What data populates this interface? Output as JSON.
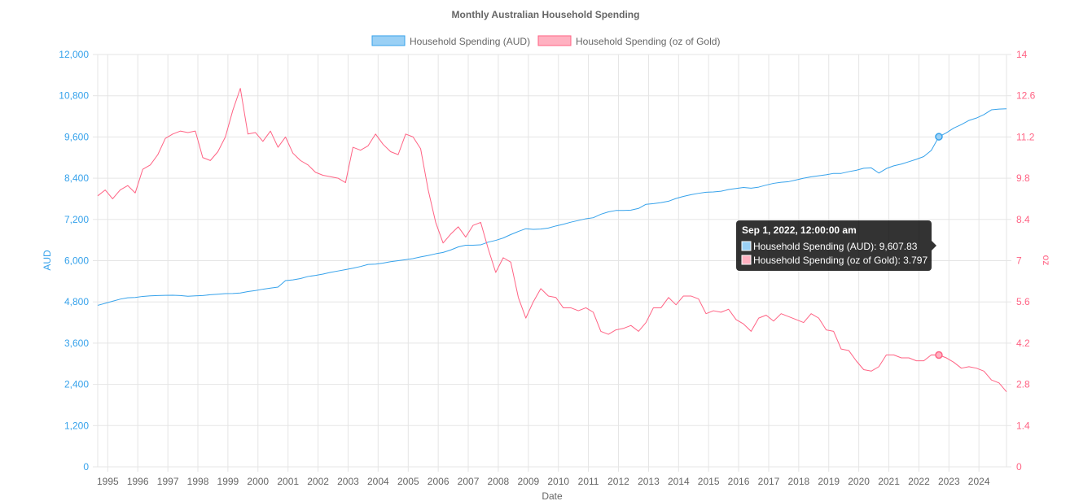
{
  "chart_data": {
    "type": "line",
    "title": "Monthly Australian Household Spending",
    "xlabel": "Date",
    "x_ticks": [
      "1995",
      "1996",
      "1997",
      "1998",
      "1999",
      "2000",
      "2001",
      "2002",
      "2003",
      "2004",
      "2005",
      "2006",
      "2007",
      "2008",
      "2009",
      "2010",
      "2011",
      "2012",
      "2013",
      "2014",
      "2015",
      "2016",
      "2017",
      "2018",
      "2019",
      "2020",
      "2021",
      "2022",
      "2023",
      "2024"
    ],
    "x_range": [
      "1994-09-01",
      "2024-12-01"
    ],
    "legend_position": "top",
    "grid": true,
    "y_left": {
      "label": "AUD",
      "ylim": [
        0,
        12000
      ],
      "ticks": [
        "0",
        "1,200",
        "2,400",
        "3,600",
        "4,800",
        "6,000",
        "7,200",
        "8,400",
        "9,600",
        "10,800",
        "12,000"
      ]
    },
    "y_right": {
      "label": "oz",
      "ylim": [
        0,
        14
      ],
      "ticks": [
        "0",
        "1.4",
        "2.8",
        "4.2",
        "5.6",
        "7",
        "8.4",
        "9.8",
        "11.2",
        "12.6",
        "14"
      ]
    },
    "series": [
      {
        "name": "Household Spending (AUD)",
        "axis": "left",
        "color": "#36a2eb",
        "fill": "#9ad0f5",
        "points": [
          [
            "1994-09-01",
            4700
          ],
          [
            "1994-12-01",
            4760
          ],
          [
            "1995-03-01",
            4820
          ],
          [
            "1995-06-01",
            4880
          ],
          [
            "1995-09-01",
            4920
          ],
          [
            "1995-12-01",
            4930
          ],
          [
            "1996-03-01",
            4960
          ],
          [
            "1996-06-01",
            4975
          ],
          [
            "1996-09-01",
            4985
          ],
          [
            "1996-12-01",
            4990
          ],
          [
            "1997-03-01",
            4995
          ],
          [
            "1997-06-01",
            4985
          ],
          [
            "1997-09-01",
            4965
          ],
          [
            "1997-12-01",
            4975
          ],
          [
            "1998-03-01",
            4985
          ],
          [
            "1998-06-01",
            5010
          ],
          [
            "1998-09-01",
            5025
          ],
          [
            "1998-12-01",
            5040
          ],
          [
            "1999-03-01",
            5045
          ],
          [
            "1999-06-01",
            5060
          ],
          [
            "1999-09-01",
            5100
          ],
          [
            "1999-12-01",
            5130
          ],
          [
            "2000-03-01",
            5170
          ],
          [
            "2000-06-01",
            5200
          ],
          [
            "2000-09-01",
            5230
          ],
          [
            "2000-12-01",
            5420
          ],
          [
            "2001-03-01",
            5440
          ],
          [
            "2001-06-01",
            5480
          ],
          [
            "2001-09-01",
            5540
          ],
          [
            "2001-12-01",
            5570
          ],
          [
            "2002-03-01",
            5610
          ],
          [
            "2002-06-01",
            5660
          ],
          [
            "2002-09-01",
            5700
          ],
          [
            "2002-12-01",
            5740
          ],
          [
            "2003-03-01",
            5780
          ],
          [
            "2003-06-01",
            5830
          ],
          [
            "2003-09-01",
            5890
          ],
          [
            "2003-12-01",
            5900
          ],
          [
            "2004-03-01",
            5930
          ],
          [
            "2004-06-01",
            5970
          ],
          [
            "2004-09-01",
            6000
          ],
          [
            "2004-12-01",
            6030
          ],
          [
            "2005-03-01",
            6060
          ],
          [
            "2005-06-01",
            6110
          ],
          [
            "2005-09-01",
            6150
          ],
          [
            "2005-12-01",
            6200
          ],
          [
            "2006-03-01",
            6240
          ],
          [
            "2006-06-01",
            6310
          ],
          [
            "2006-09-01",
            6400
          ],
          [
            "2006-12-01",
            6450
          ],
          [
            "2007-03-01",
            6450
          ],
          [
            "2007-06-01",
            6460
          ],
          [
            "2007-09-01",
            6540
          ],
          [
            "2007-12-01",
            6590
          ],
          [
            "2008-03-01",
            6660
          ],
          [
            "2008-06-01",
            6760
          ],
          [
            "2008-09-01",
            6850
          ],
          [
            "2008-12-01",
            6930
          ],
          [
            "2009-03-01",
            6910
          ],
          [
            "2009-06-01",
            6920
          ],
          [
            "2009-09-01",
            6950
          ],
          [
            "2009-12-01",
            7010
          ],
          [
            "2010-03-01",
            7060
          ],
          [
            "2010-06-01",
            7120
          ],
          [
            "2010-09-01",
            7170
          ],
          [
            "2010-12-01",
            7220
          ],
          [
            "2011-03-01",
            7250
          ],
          [
            "2011-06-01",
            7350
          ],
          [
            "2011-09-01",
            7420
          ],
          [
            "2011-12-01",
            7460
          ],
          [
            "2012-03-01",
            7460
          ],
          [
            "2012-06-01",
            7470
          ],
          [
            "2012-09-01",
            7520
          ],
          [
            "2012-12-01",
            7640
          ],
          [
            "2013-03-01",
            7660
          ],
          [
            "2013-06-01",
            7690
          ],
          [
            "2013-09-01",
            7730
          ],
          [
            "2013-12-01",
            7810
          ],
          [
            "2014-03-01",
            7870
          ],
          [
            "2014-06-01",
            7920
          ],
          [
            "2014-09-01",
            7960
          ],
          [
            "2014-12-01",
            7990
          ],
          [
            "2015-03-01",
            8000
          ],
          [
            "2015-06-01",
            8020
          ],
          [
            "2015-09-01",
            8070
          ],
          [
            "2015-12-01",
            8100
          ],
          [
            "2016-03-01",
            8130
          ],
          [
            "2016-06-01",
            8110
          ],
          [
            "2016-09-01",
            8140
          ],
          [
            "2016-12-01",
            8200
          ],
          [
            "2017-03-01",
            8250
          ],
          [
            "2017-06-01",
            8280
          ],
          [
            "2017-09-01",
            8300
          ],
          [
            "2017-12-01",
            8350
          ],
          [
            "2018-03-01",
            8400
          ],
          [
            "2018-06-01",
            8440
          ],
          [
            "2018-09-01",
            8470
          ],
          [
            "2018-12-01",
            8500
          ],
          [
            "2019-03-01",
            8540
          ],
          [
            "2019-06-01",
            8540
          ],
          [
            "2019-09-01",
            8590
          ],
          [
            "2019-12-01",
            8630
          ],
          [
            "2020-03-01",
            8690
          ],
          [
            "2020-06-01",
            8700
          ],
          [
            "2020-09-01",
            8550
          ],
          [
            "2020-12-01",
            8680
          ],
          [
            "2021-03-01",
            8760
          ],
          [
            "2021-06-01",
            8810
          ],
          [
            "2021-09-01",
            8880
          ],
          [
            "2021-12-01",
            8950
          ],
          [
            "2022-03-01",
            9030
          ],
          [
            "2022-06-01",
            9210
          ],
          [
            "2022-09-01",
            9607.83
          ],
          [
            "2022-12-01",
            9720
          ],
          [
            "2023-03-01",
            9860
          ],
          [
            "2023-06-01",
            9960
          ],
          [
            "2023-09-01",
            10080
          ],
          [
            "2023-12-01",
            10150
          ],
          [
            "2024-03-01",
            10250
          ],
          [
            "2024-06-01",
            10390
          ],
          [
            "2024-09-01",
            10410
          ],
          [
            "2024-12-01",
            10420
          ]
        ]
      },
      {
        "name": "Household Spending (oz of Gold)",
        "axis": "right",
        "color": "#ff6384",
        "fill": "#ffb1c1",
        "points": [
          [
            "1994-09-01",
            9.2
          ],
          [
            "1994-12-01",
            9.4
          ],
          [
            "1995-03-01",
            9.1
          ],
          [
            "1995-06-01",
            9.4
          ],
          [
            "1995-09-01",
            9.55
          ],
          [
            "1995-12-01",
            9.3
          ],
          [
            "1996-03-01",
            10.1
          ],
          [
            "1996-06-01",
            10.25
          ],
          [
            "1996-09-01",
            10.6
          ],
          [
            "1996-12-01",
            11.15
          ],
          [
            "1997-03-01",
            11.3
          ],
          [
            "1997-06-01",
            11.4
          ],
          [
            "1997-09-01",
            11.35
          ],
          [
            "1997-12-01",
            11.4
          ],
          [
            "1998-03-01",
            10.5
          ],
          [
            "1998-06-01",
            10.4
          ],
          [
            "1998-09-01",
            10.7
          ],
          [
            "1998-12-01",
            11.2
          ],
          [
            "1999-03-01",
            12.1
          ],
          [
            "1999-06-01",
            12.85
          ],
          [
            "1999-09-01",
            11.3
          ],
          [
            "1999-12-01",
            11.35
          ],
          [
            "2000-03-01",
            11.05
          ],
          [
            "2000-06-01",
            11.4
          ],
          [
            "2000-09-01",
            10.85
          ],
          [
            "2000-12-01",
            11.2
          ],
          [
            "2001-03-01",
            10.65
          ],
          [
            "2001-06-01",
            10.4
          ],
          [
            "2001-09-01",
            10.25
          ],
          [
            "2001-12-01",
            10.0
          ],
          [
            "2002-03-01",
            9.9
          ],
          [
            "2002-06-01",
            9.85
          ],
          [
            "2002-09-01",
            9.8
          ],
          [
            "2002-12-01",
            9.65
          ],
          [
            "2003-03-01",
            10.85
          ],
          [
            "2003-06-01",
            10.75
          ],
          [
            "2003-09-01",
            10.9
          ],
          [
            "2003-12-01",
            11.3
          ],
          [
            "2004-03-01",
            10.95
          ],
          [
            "2004-06-01",
            10.7
          ],
          [
            "2004-09-01",
            10.6
          ],
          [
            "2004-12-01",
            11.3
          ],
          [
            "2005-03-01",
            11.2
          ],
          [
            "2005-06-01",
            10.8
          ],
          [
            "2005-09-01",
            9.4
          ],
          [
            "2005-12-01",
            8.3
          ],
          [
            "2006-03-01",
            7.6
          ],
          [
            "2006-06-01",
            7.9
          ],
          [
            "2006-09-01",
            8.15
          ],
          [
            "2006-12-01",
            7.8
          ],
          [
            "2007-03-01",
            8.2
          ],
          [
            "2007-06-01",
            8.3
          ],
          [
            "2007-09-01",
            7.4
          ],
          [
            "2007-12-01",
            6.6
          ],
          [
            "2008-03-01",
            7.1
          ],
          [
            "2008-06-01",
            6.95
          ],
          [
            "2008-09-01",
            5.75
          ],
          [
            "2008-12-01",
            5.05
          ],
          [
            "2009-03-01",
            5.6
          ],
          [
            "2009-06-01",
            6.05
          ],
          [
            "2009-09-01",
            5.8
          ],
          [
            "2009-12-01",
            5.75
          ],
          [
            "2010-03-01",
            5.4
          ],
          [
            "2010-06-01",
            5.4
          ],
          [
            "2010-09-01",
            5.3
          ],
          [
            "2010-12-01",
            5.4
          ],
          [
            "2011-03-01",
            5.25
          ],
          [
            "2011-06-01",
            4.6
          ],
          [
            "2011-09-01",
            4.5
          ],
          [
            "2011-12-01",
            4.65
          ],
          [
            "2012-03-01",
            4.7
          ],
          [
            "2012-06-01",
            4.8
          ],
          [
            "2012-09-01",
            4.6
          ],
          [
            "2012-12-01",
            4.9
          ],
          [
            "2013-03-01",
            5.4
          ],
          [
            "2013-06-01",
            5.4
          ],
          [
            "2013-09-01",
            5.75
          ],
          [
            "2013-12-01",
            5.5
          ],
          [
            "2014-03-01",
            5.8
          ],
          [
            "2014-06-01",
            5.8
          ],
          [
            "2014-09-01",
            5.7
          ],
          [
            "2014-12-01",
            5.2
          ],
          [
            "2015-03-01",
            5.3
          ],
          [
            "2015-06-01",
            5.25
          ],
          [
            "2015-09-01",
            5.35
          ],
          [
            "2015-12-01",
            5.0
          ],
          [
            "2016-03-01",
            4.85
          ],
          [
            "2016-06-01",
            4.6
          ],
          [
            "2016-09-01",
            5.05
          ],
          [
            "2016-12-01",
            5.15
          ],
          [
            "2017-03-01",
            4.95
          ],
          [
            "2017-06-01",
            5.2
          ],
          [
            "2017-09-01",
            5.1
          ],
          [
            "2017-12-01",
            5.0
          ],
          [
            "2018-03-01",
            4.9
          ],
          [
            "2018-06-01",
            5.2
          ],
          [
            "2018-09-01",
            5.05
          ],
          [
            "2018-12-01",
            4.65
          ],
          [
            "2019-03-01",
            4.6
          ],
          [
            "2019-06-01",
            4.0
          ],
          [
            "2019-09-01",
            3.95
          ],
          [
            "2019-12-01",
            3.6
          ],
          [
            "2020-03-01",
            3.3
          ],
          [
            "2020-06-01",
            3.25
          ],
          [
            "2020-09-01",
            3.4
          ],
          [
            "2020-12-01",
            3.8
          ],
          [
            "2021-03-01",
            3.8
          ],
          [
            "2021-06-01",
            3.7
          ],
          [
            "2021-09-01",
            3.7
          ],
          [
            "2021-12-01",
            3.6
          ],
          [
            "2022-03-01",
            3.6
          ],
          [
            "2022-06-01",
            3.8
          ],
          [
            "2022-09-01",
            3.797
          ],
          [
            "2022-12-01",
            3.7
          ],
          [
            "2023-03-01",
            3.55
          ],
          [
            "2023-06-01",
            3.35
          ],
          [
            "2023-09-01",
            3.4
          ],
          [
            "2023-12-01",
            3.35
          ],
          [
            "2024-03-01",
            3.25
          ],
          [
            "2024-06-01",
            2.95
          ],
          [
            "2024-09-01",
            2.85
          ],
          [
            "2024-12-01",
            2.55
          ]
        ]
      }
    ]
  },
  "tooltip": {
    "title": "Sep 1, 2022, 12:00:00 am",
    "lines": [
      "Household Spending (AUD): 9,607.83",
      "Household Spending (oz of Gold): 3.797"
    ],
    "active_date": "2022-09-01"
  }
}
